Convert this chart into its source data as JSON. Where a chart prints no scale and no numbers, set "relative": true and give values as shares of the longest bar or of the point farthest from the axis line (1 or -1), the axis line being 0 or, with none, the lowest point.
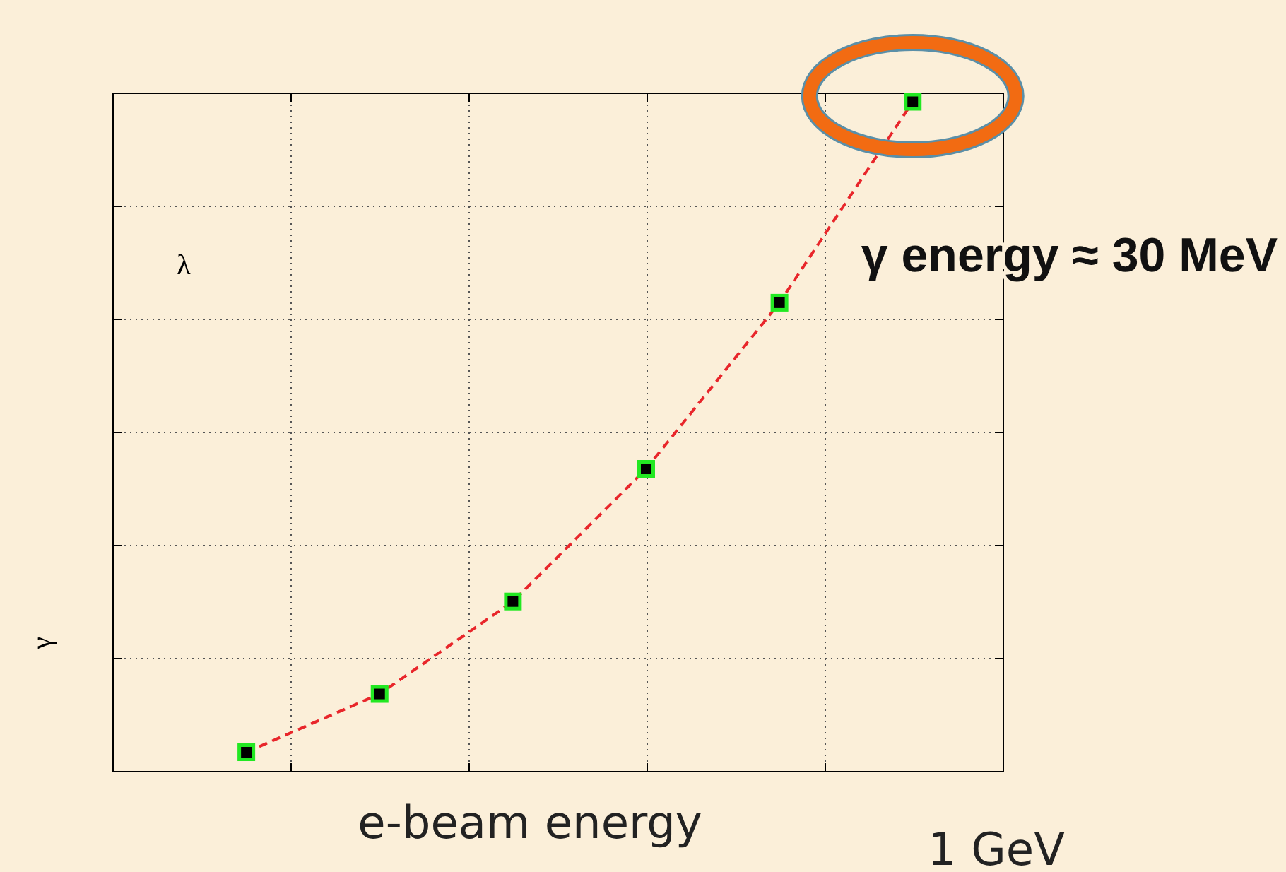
{
  "chart_data": {
    "type": "line",
    "relative": true,
    "categories": [
      null,
      null,
      null,
      null,
      null,
      null
    ],
    "series": [
      {
        "color": "#e8262b",
        "values": [
          0.029,
          0.116,
          0.254,
          0.452,
          0.7,
          1
        ]
      }
    ],
    "xlabel": "e-beam energy",
    "ylabel": "γ",
    "annotations": [
      "λ",
      "γ energy ≈ 30 MeV",
      "1 GeV"
    ],
    "grid": true,
    "marker": "square",
    "line_style": "dashed"
  }
}
